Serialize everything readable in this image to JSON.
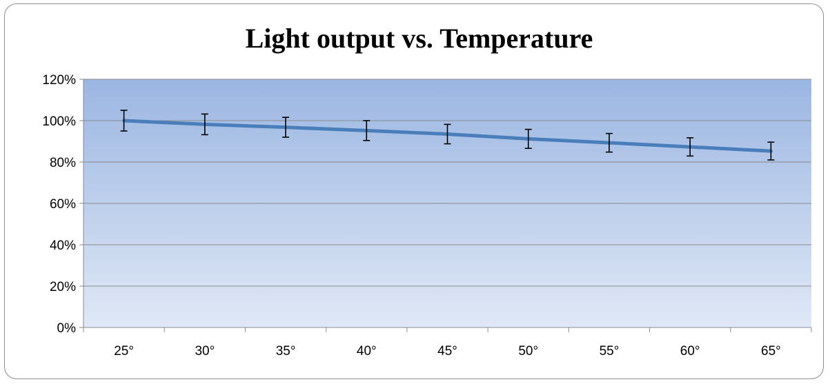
{
  "chart_data": {
    "type": "line",
    "title": "Light output vs. Temperature",
    "xlabel": "",
    "ylabel": "",
    "categories": [
      "25°",
      "30°",
      "35°",
      "40°",
      "45°",
      "50°",
      "55°",
      "60°",
      "65°"
    ],
    "series": [
      {
        "values": [
          100,
          98.2,
          96.8,
          95.2,
          93.5,
          91.2,
          89.3,
          87.3,
          85.3
        ],
        "error": [
          5,
          5,
          4.8,
          4.8,
          4.7,
          4.6,
          4.5,
          4.4,
          4.3
        ],
        "color": "#4a7ebb"
      }
    ],
    "ylim": [
      0,
      120
    ],
    "yticks": [
      "0%",
      "20%",
      "40%",
      "60%",
      "80%",
      "100%",
      "120%"
    ],
    "grid": true,
    "legend": "none",
    "plot_background": {
      "top": "#9bb6e2",
      "bottom": "#e0e8f6"
    }
  }
}
